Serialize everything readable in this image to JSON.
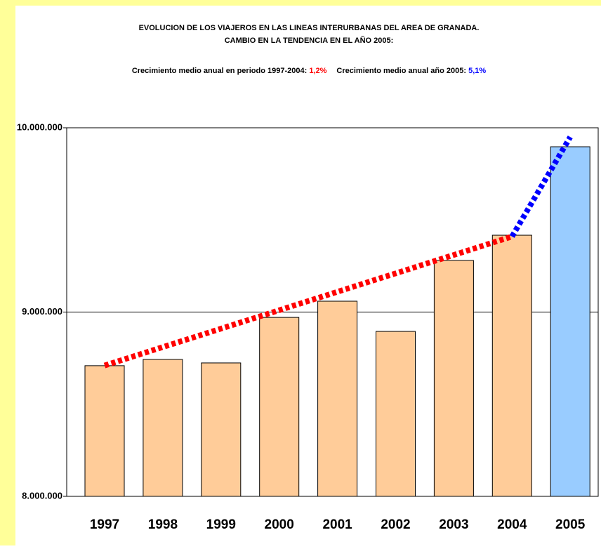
{
  "chart_data": {
    "type": "bar",
    "title": "EVOLUCION DE LOS VIAJEROS EN LAS LINEAS INTERURBANAS DEL AREA DE GRANADA.",
    "subtitle": "CAMBIO EN LA TENDENCIA EN EL AÑO 2005:",
    "annotations": [
      {
        "text": "Crecimiento medio anual en periodo 1997-2004:",
        "value_text": "1,2%",
        "color": "#ff0000"
      },
      {
        "text": "Crecimiento medio anual año 2005:",
        "value_text": "5,1%",
        "color": "#0000ff"
      }
    ],
    "categories": [
      "1997",
      "1998",
      "1999",
      "2000",
      "2001",
      "2002",
      "2003",
      "2004",
      "2005"
    ],
    "values": [
      8709000,
      8743000,
      8724000,
      8971000,
      9059000,
      8895000,
      9280000,
      9417000,
      9897000
    ],
    "colors": [
      "#ffcc99",
      "#ffcc99",
      "#ffcc99",
      "#ffcc99",
      "#ffcc99",
      "#ffcc99",
      "#ffcc99",
      "#ffcc99",
      "#99ccff"
    ],
    "trends": [
      {
        "color": "#ff0000",
        "x": [
          0,
          7
        ],
        "values": [
          8710000,
          9410000
        ]
      },
      {
        "color": "#0000ff",
        "x": [
          7,
          8
        ],
        "values": [
          9410000,
          9950000
        ]
      }
    ],
    "ylim": [
      8000000,
      10000000
    ],
    "yticks": [
      {
        "value": 8000000,
        "label": "8.000.000"
      },
      {
        "value": 9000000,
        "label": "9.000.000"
      },
      {
        "value": 10000000,
        "label": "10.000.000"
      }
    ],
    "grid": true
  }
}
